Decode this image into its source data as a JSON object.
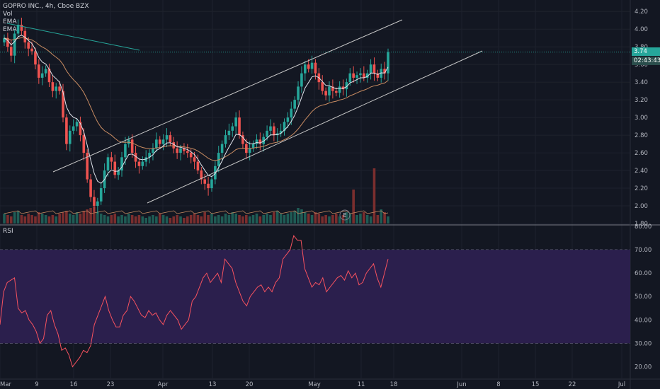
{
  "header": {
    "symbol_line": "GOPRO INC., 4h, Cboe BZX",
    "indicators": [
      "Vol",
      "EMA",
      "EMA"
    ]
  },
  "price_tags": {
    "last": "3.74",
    "countdown": "02:43:43"
  },
  "rsi_label": "RSI",
  "earnings_marker": "E",
  "colors": {
    "background": "#131722",
    "up": "#26a69a",
    "down": "#ef5350",
    "ema_fast": "#e0e3eb",
    "ema_slow": "#c98c62",
    "channel": "#c8c8c8",
    "trendline": "#26a69a",
    "rsi_line": "#f7525f",
    "rsi_band": "#2b1f4d",
    "last_price_tag": "#26a69a",
    "countdown_tag": "#2a4d4b"
  },
  "chart_data": [
    {
      "type": "candlestick",
      "title": "GOPRO INC., 4h, Cboe BZX",
      "x_ticks": [
        "Mar",
        "9",
        "16",
        "23",
        "Apr",
        "13",
        "20",
        "May",
        "11",
        "18",
        "Jun",
        "8",
        "15",
        "22",
        "Jul"
      ],
      "y_ticks": [
        "1.80",
        "2.00",
        "2.20",
        "2.40",
        "2.60",
        "2.80",
        "3.00",
        "3.20",
        "3.40",
        "3.60",
        "3.80",
        "4.00",
        "4.20"
      ],
      "ylim": [
        1.8,
        4.25
      ],
      "close_series": [
        3.9,
        3.8,
        3.7,
        3.95,
        4.05,
        3.98,
        3.85,
        3.78,
        3.75,
        3.6,
        3.45,
        3.5,
        3.55,
        3.4,
        3.3,
        3.35,
        3.3,
        3.0,
        2.7,
        2.85,
        2.9,
        2.95,
        2.8,
        2.6,
        2.3,
        2.1,
        2.0,
        2.05,
        2.2,
        2.4,
        2.55,
        2.5,
        2.35,
        2.4,
        2.55,
        2.7,
        2.75,
        2.6,
        2.5,
        2.45,
        2.5,
        2.55,
        2.6,
        2.65,
        2.75,
        2.7,
        2.75,
        2.8,
        2.72,
        2.65,
        2.6,
        2.65,
        2.62,
        2.6,
        2.55,
        2.5,
        2.4,
        2.3,
        2.25,
        2.2,
        2.3,
        2.45,
        2.6,
        2.7,
        2.8,
        2.85,
        2.9,
        3.0,
        2.8,
        2.7,
        2.6,
        2.65,
        2.7,
        2.75,
        2.7,
        2.78,
        2.85,
        2.9,
        2.8,
        2.82,
        2.85,
        2.95,
        3.0,
        3.1,
        3.2,
        3.35,
        3.5,
        3.6,
        3.55,
        3.62,
        3.5,
        3.4,
        3.3,
        3.25,
        3.35,
        3.3,
        3.28,
        3.35,
        3.32,
        3.4,
        3.5,
        3.45,
        3.48,
        3.5,
        3.45,
        3.5,
        3.6,
        3.5,
        3.45,
        3.55,
        3.5,
        3.74
      ],
      "volume_note": "volume bars shown along bottom of price pane",
      "series": [
        {
          "name": "EMA",
          "role": "fast EMA",
          "color": "#e0e3eb"
        },
        {
          "name": "EMA",
          "role": "slow EMA",
          "color": "#c98c62"
        }
      ],
      "last_price": 3.74,
      "annotations": [
        "ascending channel (two parallel lines)",
        "descending trendline",
        "earnings marker E"
      ]
    },
    {
      "type": "line",
      "title": "RSI",
      "y_ticks": [
        "20.00",
        "30.00",
        "40.00",
        "50.00",
        "60.00",
        "70.00",
        "80.00"
      ],
      "ylim": [
        15,
        80
      ],
      "band": [
        30,
        70
      ],
      "values": [
        38,
        52,
        56,
        57,
        58,
        45,
        43,
        44,
        40,
        38,
        35,
        30,
        32,
        42,
        44,
        38,
        34,
        27,
        28,
        25,
        20,
        22,
        24,
        27,
        26,
        29,
        38,
        42,
        46,
        50,
        44,
        40,
        37,
        37,
        42,
        44,
        50,
        48,
        45,
        42,
        41,
        44,
        42,
        43,
        40,
        38,
        42,
        44,
        42,
        40,
        36,
        38,
        40,
        48,
        50,
        54,
        58,
        60,
        56,
        58,
        60,
        56,
        66,
        64,
        62,
        56,
        52,
        48,
        46,
        50,
        52,
        54,
        55,
        52,
        54,
        52,
        56,
        58,
        66,
        68,
        70,
        76,
        74,
        74,
        62,
        58,
        54,
        56,
        55,
        58,
        52,
        54,
        56,
        58,
        59,
        57,
        61,
        58,
        60,
        55,
        56,
        60,
        62,
        64,
        58,
        54,
        60,
        66
      ]
    }
  ]
}
